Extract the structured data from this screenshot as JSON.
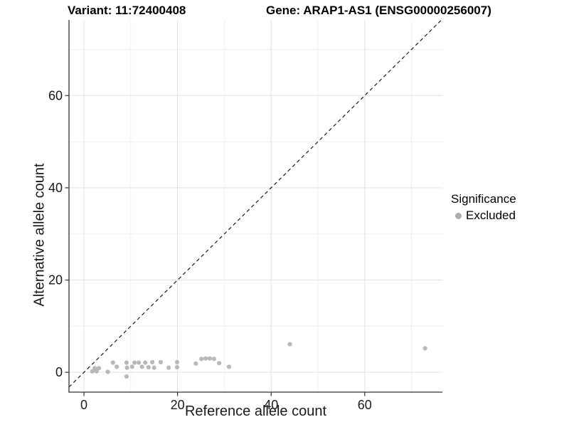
{
  "chart_data": {
    "type": "scatter",
    "title_variant": "Variant: 11:72400408",
    "title_gene": "Gene: ARAP1-AS1 (ENSG00000256007)",
    "xlabel": "Reference allele count",
    "ylabel": "Alternative allele count",
    "xlim": [
      -3.2,
      76.6
    ],
    "ylim": [
      -4.3,
      76.4
    ],
    "x_ticks": [
      0,
      20,
      40,
      60
    ],
    "y_ticks": [
      0,
      20,
      40,
      60
    ],
    "x_minor_ticks": [
      10,
      30,
      50,
      70
    ],
    "y_minor_ticks": [
      10,
      30,
      50,
      70
    ],
    "grid": "major+minor",
    "identity_line": {
      "type": "y=x",
      "style": "dashed",
      "color": "#1a1a1a"
    },
    "point_color": "#adadad",
    "major_grid_color": "#e2e2e2",
    "minor_grid_color": "#efefef",
    "axis_color": "#333333",
    "legend_position": "right",
    "legend": {
      "title": "Significance",
      "items": [
        {
          "label": "Excluded",
          "color": "#adadad"
        }
      ]
    },
    "points": [
      [
        1.8,
        0.2
      ],
      [
        2.7,
        0.2
      ],
      [
        2.3,
        0.9
      ],
      [
        3.2,
        0.9
      ],
      [
        5.1,
        0.1
      ],
      [
        6.2,
        2.1
      ],
      [
        7.0,
        1.2
      ],
      [
        9.1,
        2.1
      ],
      [
        9.2,
        1.0
      ],
      [
        9.1,
        -0.9
      ],
      [
        10.3,
        1.2
      ],
      [
        10.8,
        2.1
      ],
      [
        11.7,
        2.1
      ],
      [
        12.4,
        1.2
      ],
      [
        13.1,
        2.1
      ],
      [
        13.8,
        1.1
      ],
      [
        14.6,
        2.2
      ],
      [
        15.0,
        1.0
      ],
      [
        16.4,
        2.2
      ],
      [
        18.1,
        1.0
      ],
      [
        19.9,
        2.2
      ],
      [
        19.9,
        1.1
      ],
      [
        23.9,
        1.9
      ],
      [
        25.1,
        2.9
      ],
      [
        26.0,
        3.0
      ],
      [
        26.9,
        3.0
      ],
      [
        27.8,
        2.9
      ],
      [
        28.9,
        2.0
      ],
      [
        31.0,
        1.2
      ],
      [
        44.0,
        6.1
      ],
      [
        72.9,
        5.2
      ]
    ]
  }
}
